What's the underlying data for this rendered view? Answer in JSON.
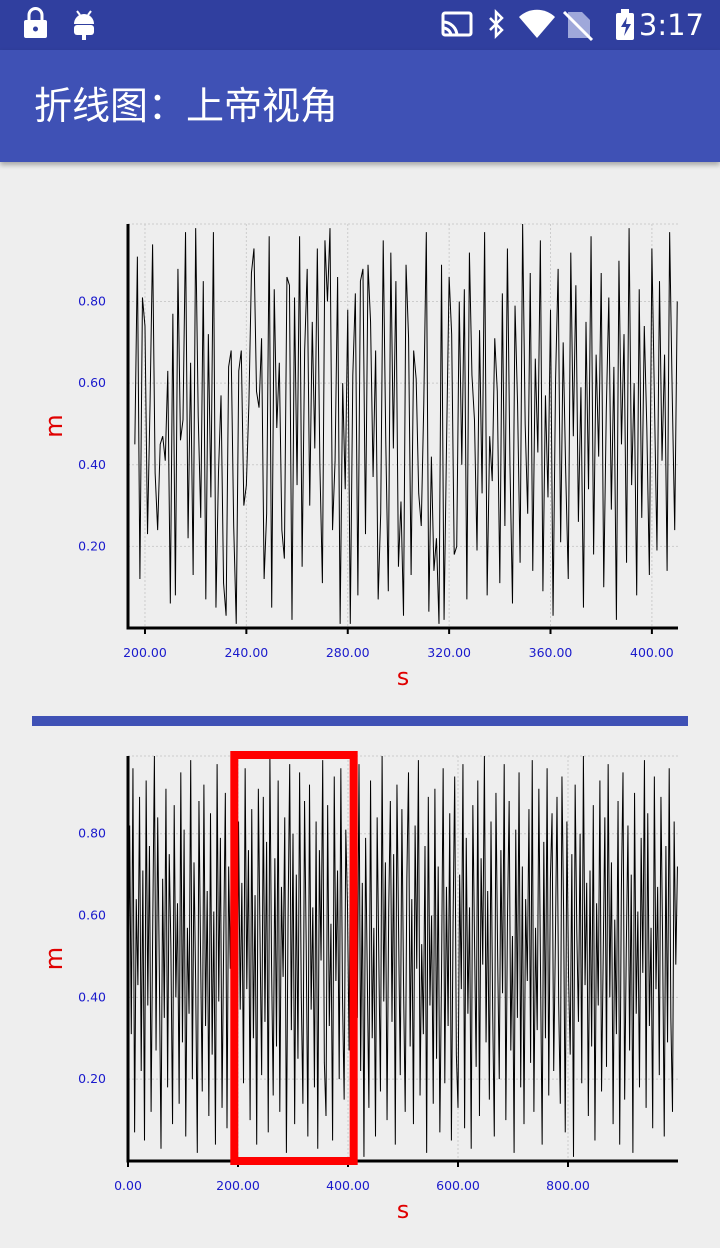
{
  "status_bar": {
    "time": "3:17"
  },
  "toolbar": {
    "title": "折线图：上帝视角"
  },
  "chart_data": [
    {
      "type": "line",
      "xlabel": "s",
      "ylabel": "m",
      "color": "#000000",
      "grid": true,
      "xlim": [
        193.3,
        410.3
      ],
      "ylim": [
        0,
        0.99
      ],
      "xticks": [
        {
          "value": 200,
          "label": "200.00"
        },
        {
          "value": 240,
          "label": "240.00"
        },
        {
          "value": 280,
          "label": "280.00"
        },
        {
          "value": 320,
          "label": "320.00"
        },
        {
          "value": 360,
          "label": "360.00"
        },
        {
          "value": 400,
          "label": "400.00"
        }
      ],
      "yticks": [
        {
          "value": 0.2,
          "label": "0.20"
        },
        {
          "value": 0.4,
          "label": "0.40"
        },
        {
          "value": 0.6,
          "label": "0.60"
        },
        {
          "value": 0.8,
          "label": "0.80"
        }
      ],
      "x": [
        196,
        197,
        198,
        199,
        200,
        201,
        202,
        203,
        204,
        205,
        206,
        207,
        208,
        209,
        210,
        211,
        212,
        213,
        214,
        215,
        216,
        217,
        218,
        219,
        220,
        221,
        222,
        223,
        224,
        225,
        226,
        227,
        228,
        229,
        230,
        231,
        232,
        233,
        234,
        235,
        236,
        237,
        238,
        239,
        240,
        241,
        242,
        243,
        244,
        245,
        246,
        247,
        248,
        249,
        250,
        251,
        252,
        253,
        254,
        255,
        256,
        257,
        258,
        259,
        260,
        261,
        262,
        263,
        264,
        265,
        266,
        267,
        268,
        269,
        270,
        271,
        272,
        273,
        274,
        275,
        276,
        277,
        278,
        279,
        280,
        281,
        282,
        283,
        284,
        285,
        286,
        287,
        288,
        289,
        290,
        291,
        292,
        293,
        294,
        295,
        296,
        297,
        298,
        299,
        300,
        301,
        302,
        303,
        304,
        305,
        306,
        307,
        308,
        309,
        310,
        311,
        312,
        313,
        314,
        315,
        316,
        317,
        318,
        319,
        320,
        321,
        322,
        323,
        324,
        325,
        326,
        327,
        328,
        329,
        330,
        331,
        332,
        333,
        334,
        335,
        336,
        337,
        338,
        339,
        340,
        341,
        342,
        343,
        344,
        345,
        346,
        347,
        348,
        349,
        350,
        351,
        352,
        353,
        354,
        355,
        356,
        357,
        358,
        359,
        360,
        361,
        362,
        363,
        364,
        365,
        366,
        367,
        368,
        369,
        370,
        371,
        372,
        373,
        374,
        375,
        376,
        377,
        378,
        379,
        380,
        381,
        382,
        383,
        384,
        385,
        386,
        387,
        388,
        389,
        390,
        391,
        392,
        393,
        394,
        395,
        396,
        397,
        398,
        399,
        400,
        401,
        402,
        403,
        404,
        405,
        406,
        407,
        408,
        409,
        410
      ],
      "values": [
        0.45,
        0.91,
        0.12,
        0.81,
        0.74,
        0.23,
        0.55,
        0.94,
        0.38,
        0.24,
        0.45,
        0.47,
        0.41,
        0.63,
        0.06,
        0.77,
        0.08,
        0.88,
        0.46,
        0.51,
        0.97,
        0.22,
        0.65,
        0.13,
        0.98,
        0.52,
        0.27,
        0.85,
        0.07,
        0.72,
        0.32,
        0.97,
        0.05,
        0.38,
        0.57,
        0.11,
        0.03,
        0.64,
        0.68,
        0.25,
        0.01,
        0.63,
        0.68,
        0.3,
        0.35,
        0.55,
        0.87,
        0.93,
        0.58,
        0.54,
        0.71,
        0.12,
        0.28,
        0.96,
        0.05,
        0.83,
        0.49,
        0.65,
        0.24,
        0.17,
        0.86,
        0.84,
        0.02,
        0.81,
        0.35,
        0.96,
        0.15,
        0.68,
        0.88,
        0.3,
        0.75,
        0.44,
        0.93,
        0.4,
        0.11,
        0.95,
        0.8,
        0.98,
        0.24,
        0.41,
        0.86,
        0.01,
        0.6,
        0.34,
        0.78,
        0.01,
        0.62,
        0.82,
        0.08,
        0.85,
        0.88,
        0.23,
        0.89,
        0.75,
        0.37,
        0.68,
        0.07,
        0.28,
        0.95,
        0.46,
        0.09,
        0.92,
        0.44,
        0.85,
        0.15,
        0.31,
        0.03,
        0.89,
        0.71,
        0.13,
        0.68,
        0.61,
        0.33,
        0.25,
        0.55,
        0.97,
        0.04,
        0.42,
        0.14,
        0.22,
        0.01,
        0.89,
        0.02,
        0.46,
        0.86,
        0.72,
        0.18,
        0.2,
        0.8,
        0.4,
        0.83,
        0.07,
        0.92,
        0.62,
        0.51,
        0.19,
        0.73,
        0.33,
        0.97,
        0.08,
        0.47,
        0.36,
        0.71,
        0.58,
        0.11,
        0.82,
        0.25,
        0.93,
        0.4,
        0.06,
        0.79,
        0.55,
        0.16,
        0.99,
        0.5,
        0.28,
        0.87,
        0.14,
        0.66,
        0.43,
        0.95,
        0.09,
        0.57,
        0.32,
        0.78,
        0.03,
        0.61,
        0.88,
        0.21,
        0.7,
        0.38,
        0.12,
        0.92,
        0.47,
        0.84,
        0.26,
        0.59,
        0.05,
        0.75,
        0.34,
        0.96,
        0.18,
        0.67,
        0.42,
        0.87,
        0.1,
        0.53,
        0.81,
        0.29,
        0.64,
        0.02,
        0.9,
        0.45,
        0.72,
        0.16,
        0.98,
        0.35,
        0.6,
        0.08,
        0.83,
        0.27,
        0.74,
        0.49,
        0.13,
        0.93,
        0.56,
        0.19,
        0.85,
        0.41,
        0.67,
        0.14,
        0.97,
        0.58,
        0.24,
        0.8
      ]
    },
    {
      "type": "line",
      "xlabel": "s",
      "ylabel": "m",
      "color": "#000000",
      "grid": true,
      "xlim": [
        0,
        1000
      ],
      "ylim": [
        0,
        0.99
      ],
      "xticks": [
        {
          "value": 0,
          "label": "0.00"
        },
        {
          "value": 200,
          "label": "200.00"
        },
        {
          "value": 400,
          "label": "400.00"
        },
        {
          "value": 600,
          "label": "600.00"
        },
        {
          "value": 800,
          "label": "800.00"
        }
      ],
      "yticks": [
        {
          "value": 0.2,
          "label": "0.20"
        },
        {
          "value": 0.4,
          "label": "0.40"
        },
        {
          "value": 0.6,
          "label": "0.60"
        },
        {
          "value": 0.8,
          "label": "0.80"
        }
      ],
      "x": [
        0,
        3,
        6,
        9,
        12,
        15,
        18,
        21,
        24,
        27,
        30,
        33,
        36,
        39,
        42,
        45,
        48,
        51,
        54,
        57,
        60,
        63,
        66,
        69,
        72,
        75,
        78,
        81,
        84,
        87,
        90,
        93,
        96,
        99,
        102,
        105,
        108,
        111,
        114,
        117,
        120,
        123,
        126,
        129,
        132,
        135,
        138,
        141,
        144,
        147,
        150,
        153,
        156,
        159,
        162,
        165,
        168,
        171,
        174,
        177,
        180,
        183,
        186,
        189,
        192,
        195,
        198,
        201,
        204,
        207,
        210,
        213,
        216,
        219,
        222,
        225,
        228,
        231,
        234,
        237,
        240,
        243,
        246,
        249,
        252,
        255,
        258,
        261,
        264,
        267,
        270,
        273,
        276,
        279,
        282,
        285,
        288,
        291,
        294,
        297,
        300,
        303,
        306,
        309,
        312,
        315,
        318,
        321,
        324,
        327,
        330,
        333,
        336,
        339,
        342,
        345,
        348,
        351,
        354,
        357,
        360,
        363,
        366,
        369,
        372,
        375,
        378,
        381,
        384,
        387,
        390,
        393,
        396,
        399,
        402,
        405,
        408,
        411,
        414,
        417,
        420,
        423,
        426,
        429,
        432,
        435,
        438,
        441,
        444,
        447,
        450,
        453,
        456,
        459,
        462,
        465,
        468,
        471,
        474,
        477,
        480,
        483,
        486,
        489,
        492,
        495,
        498,
        501,
        504,
        507,
        510,
        513,
        516,
        519,
        522,
        525,
        528,
        531,
        534,
        537,
        540,
        543,
        546,
        549,
        552,
        555,
        558,
        561,
        564,
        567,
        570,
        573,
        576,
        579,
        582,
        585,
        588,
        591,
        594,
        597,
        600,
        603,
        606,
        609,
        612,
        615,
        618,
        621,
        624,
        627,
        630,
        633,
        636,
        639,
        642,
        645,
        648,
        651,
        654,
        657,
        660,
        663,
        666,
        669,
        672,
        675,
        678,
        681,
        684,
        687,
        690,
        693,
        696,
        699,
        702,
        705,
        708,
        711,
        714,
        717,
        720,
        723,
        726,
        729,
        732,
        735,
        738,
        741,
        744,
        747,
        750,
        753,
        756,
        759,
        762,
        765,
        768,
        771,
        774,
        777,
        780,
        783,
        786,
        789,
        792,
        795,
        798,
        801,
        804,
        807,
        810,
        813,
        816,
        819,
        822,
        825,
        828,
        831,
        834,
        837,
        840,
        843,
        846,
        849,
        852,
        855,
        858,
        861,
        864,
        867,
        870,
        873,
        876,
        879,
        882,
        885,
        888,
        891,
        894,
        897,
        900,
        903,
        906,
        909,
        912,
        915,
        918,
        921,
        924,
        927,
        930,
        933,
        936,
        939,
        942,
        945,
        948,
        951,
        954,
        957,
        960,
        963,
        966,
        969,
        972,
        975,
        978,
        981,
        984,
        987,
        990,
        993,
        996,
        999
      ],
      "values": [
        0.15,
        0.82,
        0.31,
        0.96,
        0.07,
        0.64,
        0.43,
        0.89,
        0.22,
        0.71,
        0.05,
        0.93,
        0.38,
        0.77,
        0.12,
        0.58,
        0.99,
        0.27,
        0.84,
        0.46,
        0.03,
        0.69,
        0.35,
        0.91,
        0.18,
        0.75,
        0.52,
        0.09,
        0.87,
        0.4,
        0.63,
        0.14,
        0.95,
        0.29,
        0.81,
        0.06,
        0.57,
        0.36,
        0.98,
        0.2,
        0.73,
        0.44,
        0.02,
        0.88,
        0.5,
        0.17,
        0.92,
        0.33,
        0.66,
        0.11,
        0.85,
        0.26,
        0.61,
        0.04,
        0.97,
        0.39,
        0.79,
        0.13,
        0.54,
        0.9,
        0.08,
        0.72,
        0.47,
        0.94,
        0.23,
        0.6,
        0.01,
        0.83,
        0.37,
        0.68,
        0.19,
        0.96,
        0.42,
        0.76,
        0.1,
        0.86,
        0.3,
        0.65,
        0.04,
        0.91,
        0.55,
        0.21,
        0.89,
        0.34,
        0.78,
        0.07,
        0.99,
        0.48,
        0.16,
        0.74,
        0.28,
        0.93,
        0.12,
        0.67,
        0.45,
        0.84,
        0.02,
        0.59,
        0.97,
        0.32,
        0.8,
        0.09,
        0.7,
        0.25,
        0.95,
        0.41,
        0.14,
        0.88,
        0.53,
        0.06,
        0.92,
        0.37,
        0.62,
        0.18,
        0.83,
        0.03,
        0.76,
        0.49,
        0.98,
        0.24,
        0.11,
        0.87,
        0.33,
        0.58,
        0.05,
        0.94,
        0.44,
        0.71,
        0.2,
        0.96,
        0.4,
        0.15,
        0.81,
        0.63,
        0.27,
        0.9,
        0.08,
        0.52,
        0.85,
        0.35,
        0.97,
        0.22,
        0.68,
        0.01,
        0.79,
        0.46,
        0.13,
        0.93,
        0.3,
        0.57,
        0.06,
        0.84,
        0.5,
        0.17,
        0.99,
        0.39,
        0.73,
        0.1,
        0.61,
        0.88,
        0.34,
        0.75,
        0.04,
        0.92,
        0.56,
        0.21,
        0.86,
        0.43,
        0.12,
        0.69,
        0.95,
        0.28,
        0.64,
        0.09,
        0.82,
        0.47,
        0.98,
        0.16,
        0.53,
        0.31,
        0.77,
        0.02,
        0.89,
        0.38,
        0.6,
        0.14,
        0.91,
        0.25,
        0.72,
        0.07,
        0.45,
        0.96,
        0.19,
        0.67,
        0.33,
        0.85,
        0.05,
        0.58,
        0.94,
        0.26,
        0.13,
        0.7,
        0.42,
        0.97,
        0.08,
        0.79,
        0.36,
        0.62,
        0.03,
        0.87,
        0.54,
        0.23,
        0.93,
        0.11,
        0.74,
        0.48,
        0.99,
        0.29,
        0.66,
        0.15,
        0.83,
        0.37,
        0.06,
        0.9,
        0.51,
        0.2,
        0.76,
        0.41,
        0.97,
        0.1,
        0.6,
        0.88,
        0.27,
        0.55,
        0.02,
        0.81,
        0.35,
        0.95,
        0.18,
        0.72,
        0.09,
        0.64,
        0.44,
        0.86,
        0.24,
        0.98,
        0.12,
        0.57,
        0.32,
        0.91,
        0.47,
        0.04,
        0.78,
        0.3,
        0.96,
        0.16,
        0.69,
        0.85,
        0.22,
        0.53,
        0.89,
        0.39,
        0.14,
        0.94,
        0.61,
        0.07,
        0.83,
        0.45,
        0.26,
        0.75,
        0.01,
        0.92,
        0.56,
        0.34,
        0.8,
        0.19,
        0.99,
        0.43,
        0.68,
        0.11,
        0.71,
        0.28,
        0.87,
        0.05,
        0.63,
        0.38,
        0.93,
        0.17,
        0.5,
        0.84,
        0.23,
        0.97,
        0.4,
        0.73,
        0.09,
        0.59,
        0.31,
        0.88,
        0.04,
        0.66,
        0.95,
        0.15,
        0.52,
        0.82,
        0.27,
        0.7,
        0.02,
        0.9,
        0.36,
        0.61,
        0.18,
        0.79,
        0.46,
        0.98,
        0.13,
        0.85,
        0.33,
        0.57,
        0.08,
        0.94,
        0.42,
        0.67,
        0.21,
        0.89,
        0.54,
        0.06,
        0.77,
        0.29,
        0.96,
        0.35,
        0.12,
        0.83,
        0.48,
        0.72
      ]
    }
  ]
}
